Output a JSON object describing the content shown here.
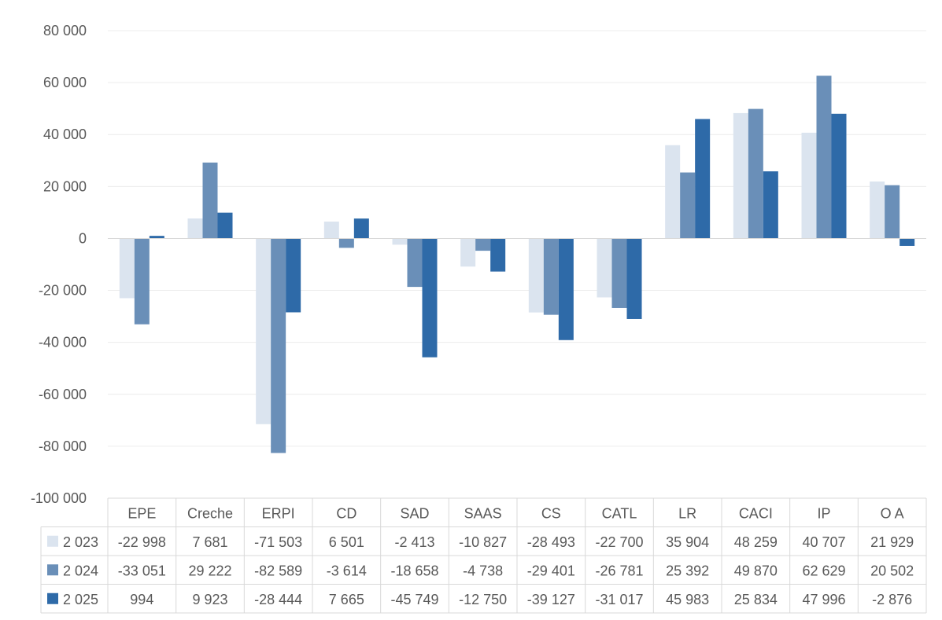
{
  "chart_data": {
    "type": "bar",
    "categories": [
      "EPE",
      "Creche",
      "ERPI",
      "CD",
      "SAD",
      "SAAS",
      "CS",
      "CATL",
      "LR",
      "CACI",
      "IP",
      "O A"
    ],
    "series": [
      {
        "name": "2 023",
        "color": "#dbe4ef",
        "values": [
          -22998,
          7681,
          -71503,
          6501,
          -2413,
          -10827,
          -28493,
          -22700,
          35904,
          48259,
          40707,
          21929
        ],
        "labels": [
          "-22 998",
          "7 681",
          "-71 503",
          "6 501",
          "-2 413",
          "-10 827",
          "-28 493",
          "-22 700",
          "35 904",
          "48 259",
          "40 707",
          "21 929"
        ]
      },
      {
        "name": "2 024",
        "color": "#6a8fb8",
        "values": [
          -33051,
          29222,
          -82589,
          -3614,
          -18658,
          -4738,
          -29401,
          -26781,
          25392,
          49870,
          62629,
          20502
        ],
        "labels": [
          "-33 051",
          "29 222",
          "-82 589",
          "-3 614",
          "-18 658",
          "-4 738",
          "-29 401",
          "-26 781",
          "25 392",
          "49 870",
          "62 629",
          "20 502"
        ]
      },
      {
        "name": "2 025",
        "color": "#2e6aa8",
        "values": [
          994,
          9923,
          -28444,
          7665,
          -45749,
          -12750,
          -39127,
          -31017,
          45983,
          25834,
          47996,
          -2876
        ],
        "labels": [
          "994",
          "9 923",
          "-28 444",
          "7 665",
          "-45 749",
          "-12 750",
          "-39 127",
          "-31 017",
          "45 983",
          "25 834",
          "47 996",
          "-2 876"
        ]
      }
    ],
    "ylim": [
      -100000,
      80000
    ],
    "yticks": [
      80000,
      60000,
      40000,
      20000,
      0,
      -20000,
      -40000,
      -60000,
      -80000,
      -100000
    ],
    "ytick_labels": [
      "80 000",
      "60 000",
      "40 000",
      "20 000",
      "0",
      "-20 000",
      "-40 000",
      "-60 000",
      "-80 000",
      "-100 000"
    ],
    "grid": true,
    "legend": "data-table-left",
    "data_table": true
  }
}
